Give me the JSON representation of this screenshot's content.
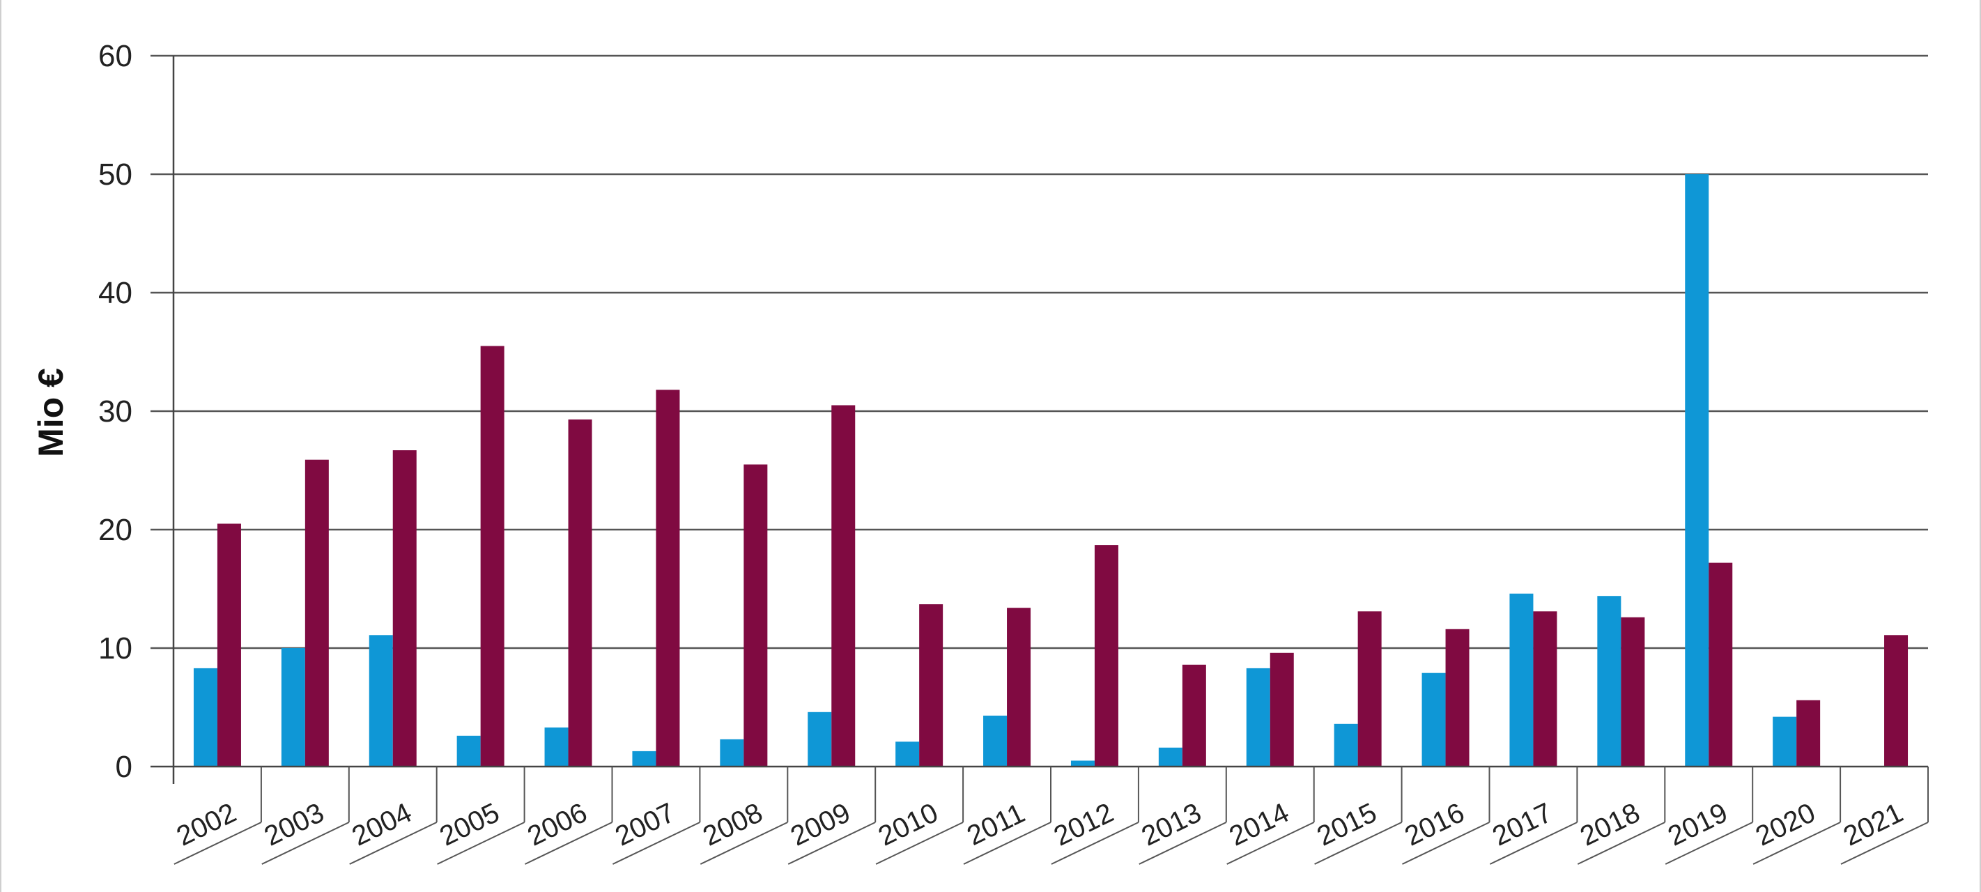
{
  "chart_data": {
    "type": "bar",
    "title": "",
    "xlabel": "",
    "ylabel": "Mio €",
    "ylim": [
      0,
      60
    ],
    "yticks": [
      0,
      10,
      20,
      30,
      40,
      50,
      60
    ],
    "grid": true,
    "legend": "none",
    "categories": [
      "2002",
      "2003",
      "2004",
      "2005",
      "2006",
      "2007",
      "2008",
      "2009",
      "2010",
      "2011",
      "2012",
      "2013",
      "2014",
      "2015",
      "2016",
      "2017",
      "2018",
      "2019",
      "2020",
      "2021"
    ],
    "series": [
      {
        "color": "#0f97d6",
        "values": [
          8.3,
          10.0,
          11.1,
          2.6,
          3.3,
          1.3,
          2.3,
          4.6,
          2.1,
          4.3,
          0.5,
          1.6,
          8.3,
          3.6,
          7.9,
          14.6,
          14.4,
          50.0,
          4.2,
          0
        ]
      },
      {
        "color": "#800a41",
        "values": [
          20.5,
          25.9,
          26.7,
          35.5,
          29.3,
          31.8,
          25.5,
          30.5,
          13.7,
          13.4,
          18.7,
          8.6,
          9.6,
          13.1,
          11.6,
          13.1,
          12.6,
          17.2,
          5.6,
          11.1
        ]
      }
    ]
  }
}
